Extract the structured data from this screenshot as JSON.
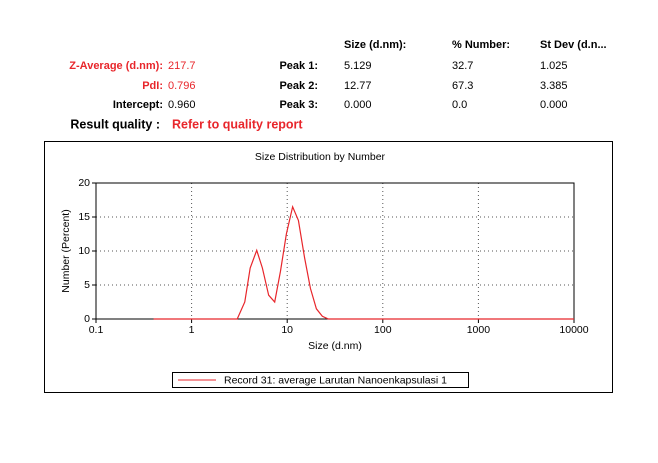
{
  "report": {
    "headers": [
      "Size (d.nm):",
      "% Number:",
      "St Dev (d.n..."
    ],
    "summary": [
      {
        "label": "Z-Average (d.nm):",
        "value": "217.7"
      },
      {
        "label": "PdI:",
        "value": "0.796"
      },
      {
        "label": "Intercept:",
        "value": "0.960"
      }
    ],
    "peaks": [
      {
        "label": "Peak 1:",
        "size": "5.129",
        "number": "32.7",
        "stdev": "1.025"
      },
      {
        "label": "Peak 2:",
        "size": "12.77",
        "number": "67.3",
        "stdev": "3.385"
      },
      {
        "label": "Peak 3:",
        "size": "0.000",
        "number": "0.0",
        "stdev": "0.000"
      }
    ],
    "result_quality": {
      "label": "Result quality :",
      "value": "Refer to quality report"
    }
  },
  "chart_data": {
    "type": "line",
    "title": "Size Distribution by Number",
    "x_label": "Size (d.nm)",
    "y_label": "Number (Percent)",
    "x_scale": "log",
    "grid": true,
    "x": [
      0.4,
      3.0,
      3.6,
      4.1,
      4.8,
      5.5,
      6.4,
      7.4,
      8.5,
      9.8,
      11.4,
      13.1,
      15.2,
      17.5,
      20.2,
      23.3,
      27,
      10000
    ],
    "series": [
      {
        "name": "Record 31: average Larutan Nanoenkapsulasi 1",
        "color": "#e8262b",
        "values": [
          0,
          0,
          2.5,
          7.5,
          10.1,
          7.5,
          3.5,
          2.5,
          7,
          12.5,
          16.5,
          14.5,
          9,
          4.5,
          1.5,
          0.4,
          0,
          0
        ]
      }
    ],
    "xlim": [
      0.1,
      10000
    ],
    "xticks": [
      0.1,
      1,
      10,
      100,
      1000,
      10000
    ],
    "ylim": [
      0,
      20
    ],
    "yticks": [
      0,
      5,
      10,
      15,
      20
    ]
  }
}
